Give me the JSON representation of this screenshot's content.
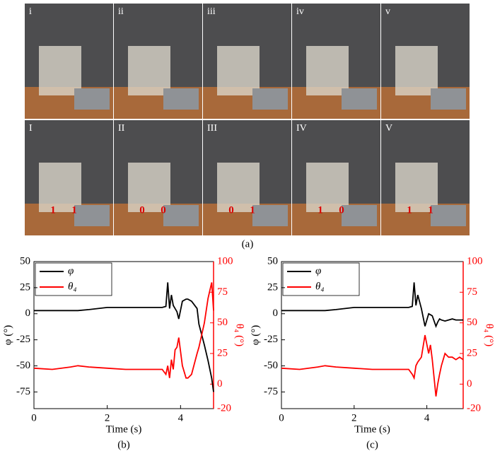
{
  "photos": {
    "top_labels": [
      "i",
      "ii",
      "iii",
      "iv",
      "v"
    ],
    "bottom_labels": [
      "I",
      "II",
      "III",
      "IV",
      "V"
    ],
    "bottom_markers": [
      [
        "1",
        "1"
      ],
      [
        "0",
        "0"
      ],
      [
        "0",
        "1"
      ],
      [
        "1",
        "0"
      ],
      [
        "1",
        "1"
      ]
    ],
    "caption": "(a)"
  },
  "chart_data": [
    {
      "type": "line",
      "panel_label": "(b)",
      "xlabel": "Time (s)",
      "ylabel": "φ (°)",
      "y2label": "θ₄ (°)",
      "x": [
        0,
        0.5,
        1,
        1.2,
        1.5,
        2,
        2.5,
        3,
        3.5,
        3.6,
        3.65,
        3.7,
        3.75,
        3.8,
        3.85,
        3.9,
        3.95,
        4.05,
        4.15,
        4.2,
        4.3,
        4.45,
        4.5,
        4.65,
        4.75,
        4.85,
        4.9
      ],
      "series": [
        {
          "name": "φ",
          "color": "#000000",
          "values": [
            3,
            3,
            3,
            3,
            4,
            6,
            6,
            6,
            6,
            7,
            30,
            5,
            18,
            8,
            5,
            2,
            -5,
            12,
            14,
            14,
            12,
            5,
            -10,
            -30,
            -45,
            -62,
            -75
          ]
        },
        {
          "name": "θ₄",
          "color": "#ff0000",
          "axis": "y2",
          "values": [
            13,
            12,
            14,
            15,
            14,
            13,
            12,
            12,
            12,
            8,
            15,
            5,
            20,
            12,
            28,
            30,
            38,
            15,
            5,
            5,
            8,
            25,
            30,
            50,
            70,
            83,
            60
          ]
        }
      ],
      "xlim": [
        0,
        4.9
      ],
      "xticks": [
        0,
        2,
        4
      ],
      "ylim": [
        -91,
        50
      ],
      "yticks": [
        -75,
        -50,
        -25,
        0,
        25,
        50
      ],
      "y2lim": [
        -20,
        100
      ],
      "y2ticks": [
        -20,
        0,
        25,
        50,
        75,
        100
      ],
      "legend": "upper left"
    },
    {
      "type": "line",
      "panel_label": "(c)",
      "xlabel": "Time (s)",
      "ylabel": "φ (°)",
      "y2label": "θ₄ (°)",
      "x": [
        0,
        0.5,
        1,
        1.2,
        1.5,
        2,
        2.5,
        3,
        3.5,
        3.6,
        3.65,
        3.7,
        3.75,
        3.85,
        3.95,
        4.05,
        4.1,
        4.15,
        4.25,
        4.3,
        4.35,
        4.4,
        4.5,
        4.6,
        4.7,
        4.8,
        4.9,
        5
      ],
      "series": [
        {
          "name": "φ",
          "color": "#000000",
          "values": [
            3,
            3,
            3,
            3,
            4,
            6,
            6,
            6,
            6,
            7,
            30,
            8,
            18,
            5,
            -12,
            0,
            -1,
            -2,
            -12,
            -8,
            -5,
            -6,
            -7,
            -6,
            -5,
            -6,
            -6,
            -6
          ]
        },
        {
          "name": "θ₄",
          "color": "#ff0000",
          "axis": "y2",
          "values": [
            13,
            12,
            14,
            15,
            14,
            13,
            12,
            12,
            12,
            8,
            5,
            15,
            18,
            22,
            40,
            25,
            32,
            20,
            -10,
            0,
            8,
            15,
            25,
            22,
            22,
            20,
            22,
            20
          ]
        }
      ],
      "xlim": [
        0,
        5
      ],
      "xticks": [
        0,
        2,
        4
      ],
      "ylim": [
        -91,
        50
      ],
      "yticks": [
        -75,
        -50,
        -25,
        0,
        25,
        50
      ],
      "y2lim": [
        -20,
        100
      ],
      "y2ticks": [
        -20,
        0,
        25,
        50,
        75,
        100
      ],
      "legend": "upper left"
    }
  ]
}
